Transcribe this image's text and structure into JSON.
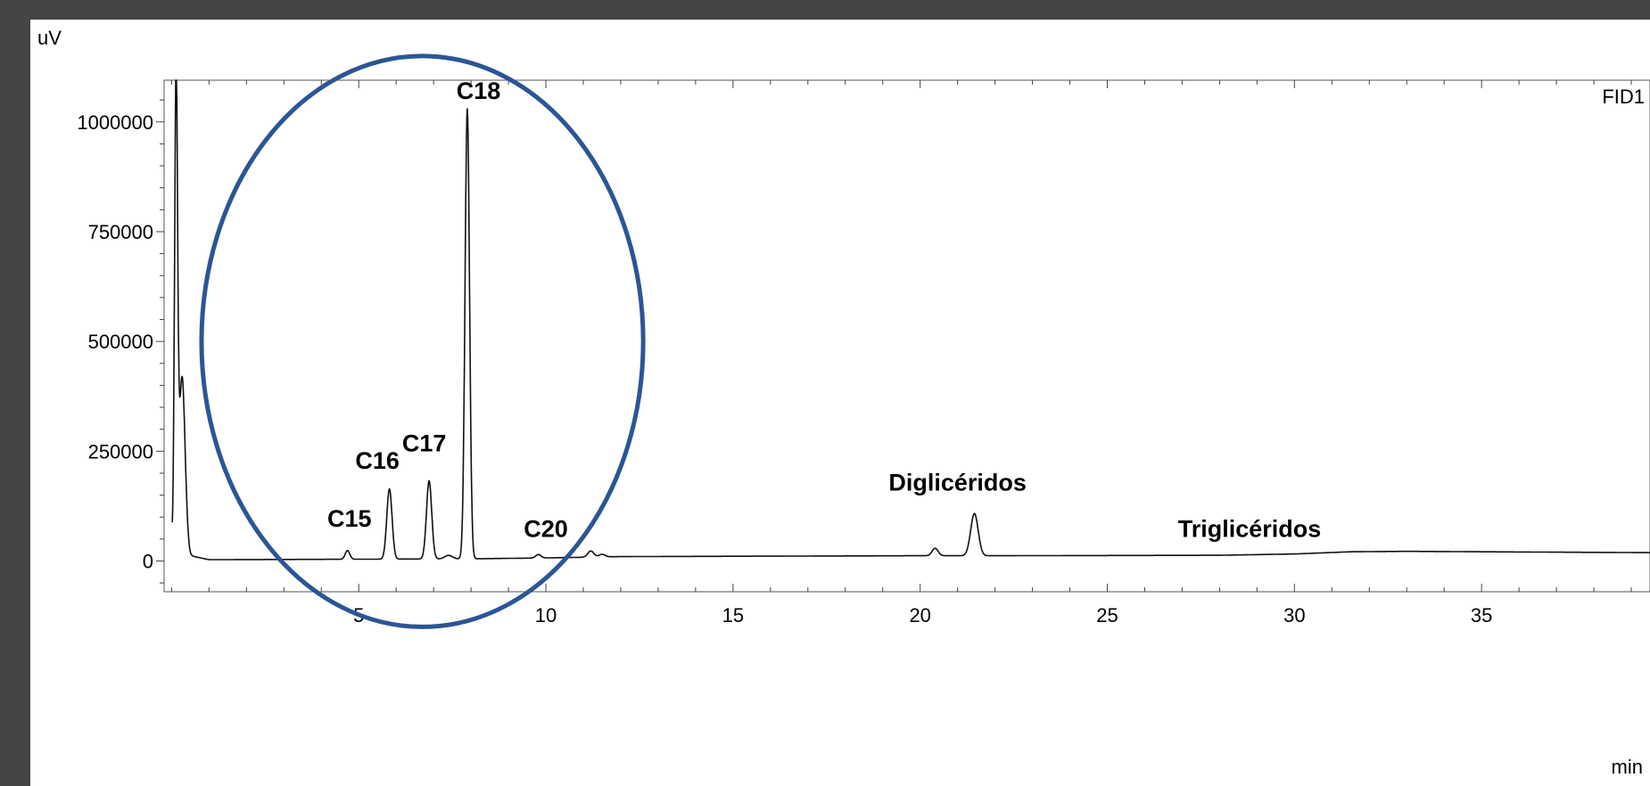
{
  "chart_data": {
    "type": "line",
    "ylabel": "uV",
    "xlabel": "min",
    "detector_label": "FID1",
    "xlim": [
      -0.2,
      39.5
    ],
    "ylim": [
      -70000,
      1095000
    ],
    "xticks": [
      5,
      10,
      15,
      20,
      25,
      30,
      35
    ],
    "yticks": [
      0,
      250000,
      500000,
      750000,
      1000000
    ],
    "grid": false,
    "highlight": {
      "shape": "ellipse",
      "color": "#2c5595",
      "x_range": [
        0.8,
        12.6
      ],
      "y_range": [
        -150000,
        1150000
      ]
    },
    "series": [
      {
        "baseline": [
          [
            0.3,
            40000
          ],
          [
            0.5,
            12000
          ],
          [
            1.0,
            3000
          ],
          [
            5.0,
            4000
          ],
          [
            8.0,
            5000
          ],
          [
            10.0,
            7000
          ],
          [
            12.0,
            10000
          ],
          [
            20.0,
            12000
          ],
          [
            22.0,
            12000
          ],
          [
            28.0,
            13000
          ],
          [
            30.0,
            16000
          ],
          [
            31.5,
            21000
          ],
          [
            33.0,
            22000
          ],
          [
            35.0,
            21000
          ],
          [
            39.5,
            19000
          ]
        ],
        "peaks": [
          {
            "t": 0.12,
            "h": 1050000,
            "w": 0.04
          },
          {
            "t": 0.28,
            "h": 380000,
            "w": 0.08
          },
          {
            "t": 4.7,
            "h": 20000,
            "w": 0.06
          },
          {
            "t": 5.82,
            "h": 160000,
            "w": 0.07
          },
          {
            "t": 6.88,
            "h": 178000,
            "w": 0.07
          },
          {
            "t": 7.4,
            "h": 8000,
            "w": 0.1
          },
          {
            "t": 7.9,
            "h": 1025000,
            "w": 0.06
          },
          {
            "t": 9.8,
            "h": 8000,
            "w": 0.07
          },
          {
            "t": 11.2,
            "h": 14000,
            "w": 0.08
          },
          {
            "t": 11.5,
            "h": 6000,
            "w": 0.08
          },
          {
            "t": 20.4,
            "h": 17000,
            "w": 0.08
          },
          {
            "t": 21.45,
            "h": 96000,
            "w": 0.1
          }
        ]
      }
    ],
    "annotations": [
      {
        "text": "C15",
        "x": 4.75,
        "y": 78000
      },
      {
        "text": "C16",
        "x": 5.5,
        "y": 210000
      },
      {
        "text": "C17",
        "x": 6.75,
        "y": 250000
      },
      {
        "text": "C18",
        "x": 8.2,
        "y": 1052000
      },
      {
        "text": "C20",
        "x": 10.0,
        "y": 55000
      },
      {
        "text": "Diglicéridos",
        "x": 21.0,
        "y": 160000
      },
      {
        "text": "Triglicéridos",
        "x": 28.8,
        "y": 55000
      }
    ]
  }
}
